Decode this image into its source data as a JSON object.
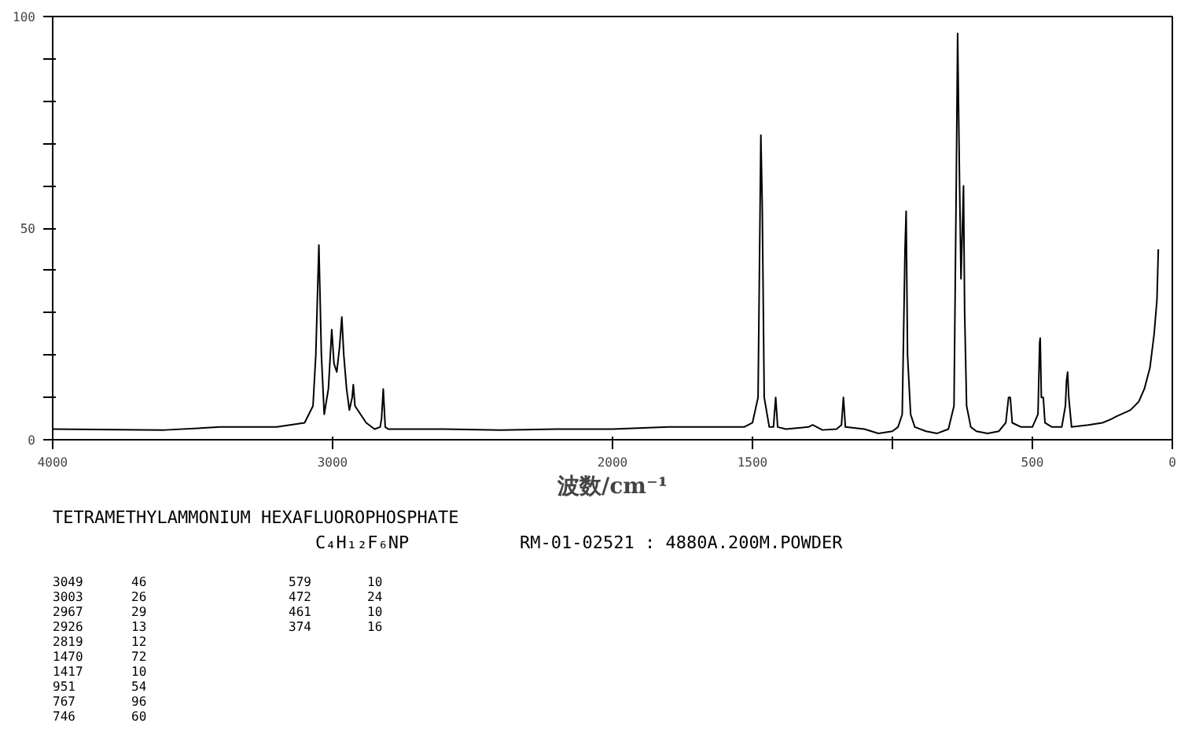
{
  "chart_data": {
    "type": "line",
    "title": "TETRAMETHYLAMMONIUM HEXAFLUOROPHOSPHATE",
    "xlabel": "波数/cm⁻¹",
    "xlim": [
      4000,
      0
    ],
    "xticks": [
      4000,
      3000,
      2000,
      1500,
      {
        "value": 1000,
        "label": null
      },
      500,
      0
    ],
    "ylim": [
      0,
      100
    ],
    "yticks": [
      0,
      {
        "value": 10,
        "label": null
      },
      {
        "value": 20,
        "label": null
      },
      {
        "value": 30,
        "label": null
      },
      {
        "value": 40,
        "label": null
      },
      50,
      {
        "value": 60,
        "label": null
      },
      {
        "value": 70,
        "label": null
      },
      {
        "value": 80,
        "label": null
      },
      {
        "value": 90,
        "label": null
      },
      100
    ],
    "grid": false,
    "line_style": "solid",
    "marker": "none",
    "series": [
      {
        "color": "#000000",
        "x": [
          4000,
          3600,
          3400,
          3200,
          3100,
          3070,
          3060,
          3049,
          3040,
          3030,
          3015,
          3003,
          2995,
          2985,
          2975,
          2967,
          2960,
          2950,
          2940,
          2930,
          2926,
          2920,
          2900,
          2880,
          2850,
          2830,
          2825,
          2819,
          2812,
          2800,
          2600,
          2400,
          2200,
          2000,
          1800,
          1600,
          1530,
          1500,
          1480,
          1470,
          1465,
          1458,
          1440,
          1425,
          1417,
          1410,
          1380,
          1300,
          1285,
          1250,
          1200,
          1182,
          1175,
          1168,
          1100,
          1050,
          1000,
          980,
          965,
          955,
          951,
          946,
          935,
          920,
          880,
          840,
          800,
          780,
          772,
          767,
          764,
          760,
          755,
          750,
          746,
          742,
          735,
          720,
          700,
          660,
          620,
          595,
          585,
          579,
          572,
          540,
          500,
          480,
          474,
          472,
          468,
          461,
          455,
          430,
          395,
          382,
          378,
          374,
          370,
          360,
          300,
          250,
          220,
          200,
          150,
          120,
          100,
          80,
          65,
          55,
          50
        ],
        "values": [
          2.5,
          2.3,
          3,
          3,
          4,
          8,
          20,
          46,
          20,
          6,
          12,
          26,
          18,
          16,
          22,
          29,
          20,
          12,
          7,
          10,
          13,
          8,
          6,
          4,
          2.5,
          3,
          5,
          12,
          3,
          2.5,
          2.5,
          2.3,
          2.5,
          2.5,
          3,
          3,
          3,
          4,
          10,
          72,
          55,
          10,
          3,
          3,
          10,
          3,
          2.5,
          3,
          3.5,
          2.3,
          2.5,
          3.5,
          10,
          3,
          2.5,
          1.5,
          2,
          3,
          6,
          45,
          54,
          20,
          6,
          3,
          2,
          1.5,
          2.5,
          8,
          60,
          96,
          80,
          60,
          38,
          50,
          60,
          30,
          8,
          3,
          2,
          1.5,
          2,
          4,
          10,
          10,
          4,
          3,
          3,
          6,
          23,
          24,
          10,
          10,
          4,
          3,
          3,
          8,
          14,
          16,
          10,
          3,
          3.5,
          4,
          4.8,
          5.5,
          7,
          9,
          12,
          17,
          25,
          33,
          45
        ]
      }
    ],
    "annotations": [
      "C₄H₁₂F₆NP",
      "RM-01-02521 : 4880A.200M.POWDER",
      "3049",
      "46",
      "3003",
      "26",
      "2967",
      "29",
      "2926",
      "13",
      "2819",
      "12",
      "1470",
      "72",
      "1417",
      "10",
      "951",
      "54",
      "767",
      "96",
      "746",
      "60",
      "579",
      "10",
      "472",
      "24",
      "461",
      "10",
      "374",
      "16"
    ]
  }
}
